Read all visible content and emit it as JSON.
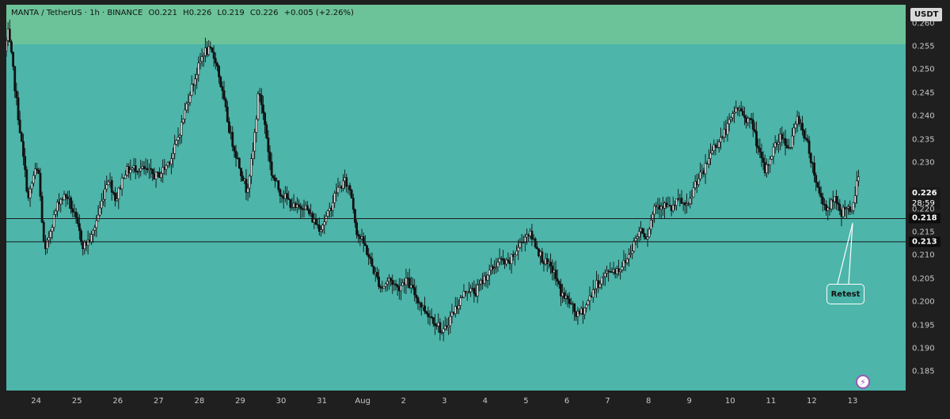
{
  "header": {
    "symbol": "MANTA / TetherUS · 1h · BINANCE",
    "open": "O0.221",
    "high": "H0.226",
    "low": "L0.219",
    "close": "C0.226",
    "change": "+0.005 (+2.26%)"
  },
  "currency_label": "USDT",
  "last_price": {
    "value": "0.226",
    "countdown": "28:59"
  },
  "annotation": "Retest",
  "colors": {
    "background": "#4db5aa",
    "zone": "#6cc399",
    "candle": "#111111",
    "line": "#1a1a1a"
  },
  "chart_data": {
    "type": "candlestick",
    "title": "",
    "ylim": [
      0.181,
      0.264
    ],
    "y_ticks": [
      "0.260",
      "0.255",
      "0.250",
      "0.245",
      "0.240",
      "0.235",
      "0.230",
      "0.220",
      "0.215",
      "0.210",
      "0.205",
      "0.200",
      "0.195",
      "0.190",
      "0.185"
    ],
    "x_ticks": [
      "24",
      "25",
      "26",
      "27",
      "28",
      "29",
      "30",
      "31",
      "Aug",
      "2",
      "3",
      "4",
      "5",
      "6",
      "7",
      "8",
      "9",
      "10",
      "11",
      "12",
      "13"
    ],
    "x_tick_days": [
      0,
      1,
      2,
      3,
      4,
      5,
      6,
      7,
      8,
      9,
      10,
      11,
      12,
      13,
      14,
      15,
      16,
      17,
      18,
      19,
      20
    ],
    "x_range_days": [
      -0.73,
      21.3
    ],
    "horizontal_levels": [
      {
        "value": 0.218,
        "label": "0.218"
      },
      {
        "value": 0.213,
        "label": "0.213"
      }
    ],
    "resistance_zone": [
      0.2555,
      0.264
    ],
    "price_path": [
      [
        -0.73,
        0.254
      ],
      [
        -0.65,
        0.258
      ],
      [
        -0.55,
        0.252
      ],
      [
        -0.45,
        0.244
      ],
      [
        -0.3,
        0.233
      ],
      [
        -0.15,
        0.222
      ],
      [
        0,
        0.228
      ],
      [
        0.1,
        0.228
      ],
      [
        0.25,
        0.21
      ],
      [
        0.4,
        0.216
      ],
      [
        0.6,
        0.222
      ],
      [
        0.8,
        0.223
      ],
      [
        1,
        0.218
      ],
      [
        1.2,
        0.212
      ],
      [
        1.4,
        0.214
      ],
      [
        1.6,
        0.22
      ],
      [
        1.8,
        0.227
      ],
      [
        2,
        0.222
      ],
      [
        2.2,
        0.228
      ],
      [
        2.5,
        0.229
      ],
      [
        2.8,
        0.228
      ],
      [
        3,
        0.227
      ],
      [
        3.2,
        0.229
      ],
      [
        3.4,
        0.232
      ],
      [
        3.6,
        0.238
      ],
      [
        3.8,
        0.245
      ],
      [
        4,
        0.25
      ],
      [
        4.15,
        0.254
      ],
      [
        4.3,
        0.254
      ],
      [
        4.45,
        0.252
      ],
      [
        4.6,
        0.245
      ],
      [
        4.8,
        0.236
      ],
      [
        5,
        0.23
      ],
      [
        5.2,
        0.224
      ],
      [
        5.35,
        0.232
      ],
      [
        5.5,
        0.246
      ],
      [
        5.65,
        0.238
      ],
      [
        5.8,
        0.228
      ],
      [
        6,
        0.224
      ],
      [
        6.2,
        0.222
      ],
      [
        6.4,
        0.22
      ],
      [
        6.6,
        0.221
      ],
      [
        6.8,
        0.218
      ],
      [
        7,
        0.216
      ],
      [
        7.2,
        0.219
      ],
      [
        7.4,
        0.224
      ],
      [
        7.6,
        0.226
      ],
      [
        7.75,
        0.224
      ],
      [
        7.9,
        0.215
      ],
      [
        8.1,
        0.212
      ],
      [
        8.3,
        0.207
      ],
      [
        8.5,
        0.203
      ],
      [
        8.7,
        0.205
      ],
      [
        8.9,
        0.203
      ],
      [
        9.1,
        0.205
      ],
      [
        9.3,
        0.202
      ],
      [
        9.5,
        0.199
      ],
      [
        9.7,
        0.197
      ],
      [
        9.9,
        0.195
      ],
      [
        10,
        0.193
      ],
      [
        10.2,
        0.197
      ],
      [
        10.4,
        0.2
      ],
      [
        10.6,
        0.203
      ],
      [
        10.8,
        0.202
      ],
      [
        11,
        0.205
      ],
      [
        11.2,
        0.207
      ],
      [
        11.4,
        0.209
      ],
      [
        11.6,
        0.208
      ],
      [
        11.8,
        0.211
      ],
      [
        12,
        0.214
      ],
      [
        12.1,
        0.215
      ],
      [
        12.25,
        0.213
      ],
      [
        12.4,
        0.21
      ],
      [
        12.55,
        0.208
      ],
      [
        12.7,
        0.207
      ],
      [
        12.9,
        0.202
      ],
      [
        13.1,
        0.2
      ],
      [
        13.3,
        0.197
      ],
      [
        13.5,
        0.199
      ],
      [
        13.7,
        0.203
      ],
      [
        13.9,
        0.205
      ],
      [
        14.1,
        0.207
      ],
      [
        14.3,
        0.207
      ],
      [
        14.5,
        0.209
      ],
      [
        14.7,
        0.213
      ],
      [
        14.85,
        0.216
      ],
      [
        15,
        0.214
      ],
      [
        15.2,
        0.221
      ],
      [
        15.4,
        0.221
      ],
      [
        15.6,
        0.22
      ],
      [
        15.8,
        0.222
      ],
      [
        16,
        0.22
      ],
      [
        16.2,
        0.226
      ],
      [
        16.4,
        0.228
      ],
      [
        16.6,
        0.233
      ],
      [
        16.8,
        0.235
      ],
      [
        17,
        0.238
      ],
      [
        17.2,
        0.242
      ],
      [
        17.4,
        0.24
      ],
      [
        17.6,
        0.238
      ],
      [
        17.75,
        0.232
      ],
      [
        17.9,
        0.228
      ],
      [
        18.1,
        0.233
      ],
      [
        18.3,
        0.236
      ],
      [
        18.5,
        0.233
      ],
      [
        18.7,
        0.24
      ],
      [
        18.9,
        0.235
      ],
      [
        19.05,
        0.23
      ],
      [
        19.2,
        0.224
      ],
      [
        19.4,
        0.22
      ],
      [
        19.6,
        0.222
      ],
      [
        19.75,
        0.219
      ],
      [
        19.9,
        0.221
      ],
      [
        20.0,
        0.218
      ],
      [
        20.15,
        0.226
      ]
    ]
  }
}
